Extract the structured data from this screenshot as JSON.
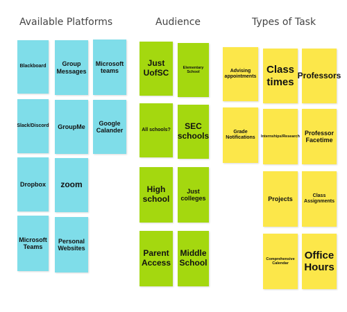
{
  "headings": {
    "platforms": "Available Platforms",
    "audience": "Audience",
    "tasks": "Types of Task"
  },
  "colors": {
    "platforms": "#7fdde9",
    "audience": "#a4d80f",
    "tasks": "#fce74a"
  },
  "platforms": [
    "Blackboard",
    "Group Messages",
    "Microsoft teams",
    "Slack/Discord",
    "GroupMe",
    "Google Calander",
    "Dropbox",
    "zoom",
    "Microsoft Teams",
    "Personal Websites"
  ],
  "audience": [
    "Just UofSC",
    "Elementary School",
    "All schools?",
    "SEC schools",
    "High school",
    "Just colleges",
    "Parent Access",
    "Middle School"
  ],
  "tasks": [
    "Advising appointments",
    "Class times",
    "Professors",
    "Grade Notifications",
    "Internships/Research",
    "Professor Facetime",
    "Projects",
    "Class Assignments",
    "Comprehensive Calendar",
    "Office Hours"
  ]
}
